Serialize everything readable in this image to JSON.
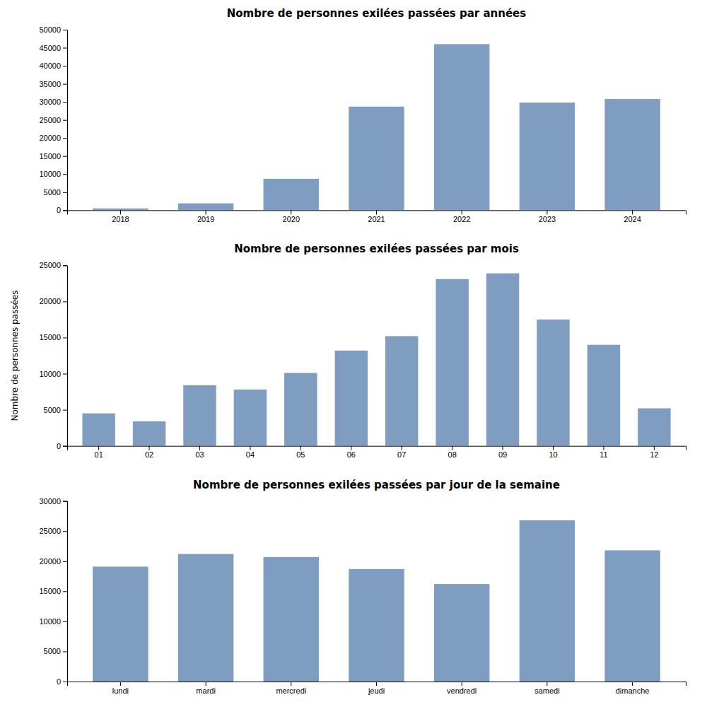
{
  "chart_data": [
    {
      "type": "bar",
      "title": "Nombre de personnes exilées passées par années",
      "categories": [
        "2018",
        "2019",
        "2020",
        "2021",
        "2022",
        "2023",
        "2024"
      ],
      "values": [
        500,
        1900,
        8700,
        28700,
        46000,
        29800,
        30800
      ],
      "color": "#7f9dc0",
      "ylim": [
        0,
        50000
      ],
      "yticks": [
        0,
        5000,
        10000,
        15000,
        20000,
        25000,
        30000,
        35000,
        40000,
        45000,
        50000
      ],
      "grid": false
    },
    {
      "type": "bar",
      "title": "Nombre de personnes exilées passées par mois",
      "ylabel": "Nombre de personnes passées",
      "categories": [
        "01",
        "02",
        "03",
        "04",
        "05",
        "06",
        "07",
        "08",
        "09",
        "10",
        "11",
        "12"
      ],
      "values": [
        4500,
        3400,
        8400,
        7800,
        10100,
        13200,
        15200,
        23100,
        23900,
        17500,
        14000,
        5200
      ],
      "color": "#7f9dc0",
      "ylim": [
        0,
        25000
      ],
      "yticks": [
        0,
        5000,
        10000,
        15000,
        20000,
        25000
      ],
      "grid": false
    },
    {
      "type": "bar",
      "title": "Nombre de personnes exilées passées par jour de la semaine",
      "categories": [
        "lundi",
        "mardi",
        "mercredi",
        "jeudi",
        "vendredi",
        "samedi",
        "dimanche"
      ],
      "values": [
        19100,
        21200,
        20700,
        18700,
        16200,
        26800,
        21800
      ],
      "color": "#7f9dc0",
      "ylim": [
        0,
        30000
      ],
      "yticks": [
        0,
        5000,
        10000,
        15000,
        20000,
        25000,
        30000
      ],
      "grid": false
    }
  ]
}
